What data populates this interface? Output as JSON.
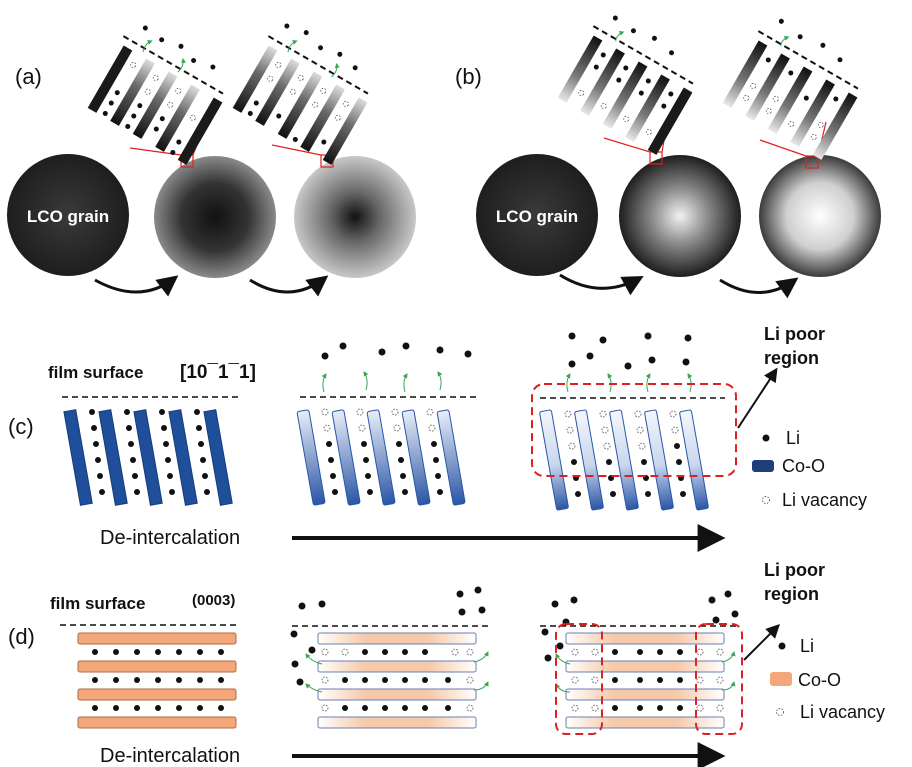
{
  "panels": {
    "a": {
      "label": "(a)",
      "grain_label": "LCO grain"
    },
    "b": {
      "label": "(b)",
      "grain_label": "LCO grain"
    },
    "c": {
      "label": "(c)",
      "surface_label": "film surface",
      "orientation_label": "[10¯1¯1]",
      "region_label_line1": "Li poor",
      "region_label_line2": "region",
      "arrow_label": "De-intercalation",
      "legend": {
        "li": "Li",
        "coo": "Co-O",
        "vacancy": "Li vacancy"
      }
    },
    "d": {
      "label": "(d)",
      "surface_label": "film surface",
      "orientation_label": "(0003)",
      "region_label_line1": "Li poor",
      "region_label_line2": "region",
      "arrow_label": "De-intercalation",
      "legend": {
        "li": "Li",
        "coo": "Co-O",
        "vacancy": "Li vacancy"
      }
    }
  },
  "colors": {
    "lco_grain": "#2a2a2a",
    "coo_blue": "#1f4e9a",
    "coo_orange": "#f3a77a",
    "highlight_red": "#e02020",
    "migration_green": "#3aa655"
  }
}
